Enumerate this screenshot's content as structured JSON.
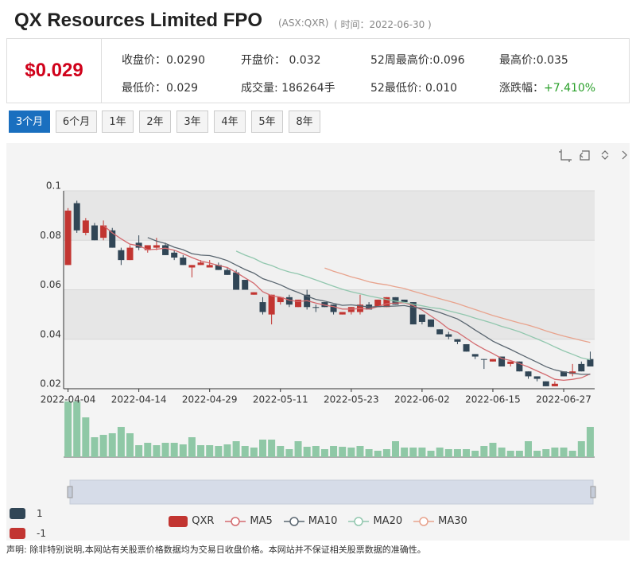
{
  "header": {
    "title": "QX Resources Limited FPO",
    "code": "(ASX:QXR)",
    "time": "( 时间：2022-06-30 )"
  },
  "quote": {
    "price": "$0.029",
    "stats": [
      {
        "label": "收盘价：",
        "value": "0.0290"
      },
      {
        "label": "开盘价： ",
        "value": "0.032"
      },
      {
        "label": "52周最高价:",
        "value": "0.096"
      },
      {
        "label": "最高价:",
        "value": "0.035"
      },
      {
        "label": "最低价：",
        "value": "0.029"
      },
      {
        "label": "成交量: ",
        "value": "186264手"
      },
      {
        "label": "52最低价: ",
        "value": "0.010"
      },
      {
        "label": "涨跌幅：",
        "value": "+7.410%",
        "color": "#2aa02a"
      }
    ]
  },
  "periods": [
    {
      "label": "3个月",
      "active": true
    },
    {
      "label": "6个月"
    },
    {
      "label": "1年"
    },
    {
      "label": "2年"
    },
    {
      "label": "3年"
    },
    {
      "label": "4年"
    },
    {
      "label": "5年"
    },
    {
      "label": "8年"
    }
  ],
  "chart_data": {
    "type": "candlestick",
    "name": "QXR",
    "categories": [
      "2022-04-04",
      null,
      null,
      null,
      null,
      null,
      null,
      null,
      "2022-04-14",
      null,
      null,
      null,
      null,
      null,
      null,
      null,
      "2022-04-29",
      null,
      null,
      null,
      null,
      null,
      null,
      null,
      "2022-05-11",
      null,
      null,
      null,
      null,
      null,
      null,
      null,
      "2022-05-23",
      null,
      null,
      null,
      null,
      null,
      null,
      null,
      "2022-06-02",
      null,
      null,
      null,
      null,
      null,
      null,
      null,
      "2022-06-15",
      null,
      null,
      null,
      null,
      null,
      null,
      null,
      "2022-06-27",
      null,
      null,
      null
    ],
    "open": [
      0.07,
      0.095,
      0.083,
      0.086,
      0.081,
      0.084,
      0.076,
      0.072,
      0.079,
      0.076,
      0.077,
      0.078,
      0.075,
      0.073,
      0.069,
      0.07,
      0.069,
      0.07,
      0.068,
      0.067,
      0.064,
      0.058,
      0.055,
      0.05,
      0.055,
      0.057,
      0.053,
      0.058,
      0.053,
      0.055,
      0.054,
      0.05,
      0.051,
      0.051,
      0.054,
      0.053,
      0.053,
      0.057,
      0.056,
      0.055,
      0.05,
      0.048,
      0.044,
      0.042,
      0.04,
      0.038,
      0.034,
      0.032,
      0.031,
      0.033,
      0.03,
      0.031,
      0.027,
      0.025,
      0.023,
      0.021,
      0.027,
      0.026,
      0.03,
      0.032
    ],
    "close": [
      0.092,
      0.084,
      0.088,
      0.08,
      0.086,
      0.077,
      0.072,
      0.077,
      0.077,
      0.078,
      0.078,
      0.074,
      0.073,
      0.07,
      0.07,
      0.071,
      0.07,
      0.068,
      0.066,
      0.06,
      0.06,
      0.059,
      0.051,
      0.058,
      0.057,
      0.054,
      0.056,
      0.053,
      0.053,
      0.053,
      0.051,
      0.051,
      0.053,
      0.054,
      0.052,
      0.056,
      0.057,
      0.054,
      0.055,
      0.046,
      0.047,
      0.045,
      0.042,
      0.041,
      0.039,
      0.035,
      0.033,
      0.032,
      0.032,
      0.029,
      0.031,
      0.027,
      0.025,
      0.024,
      0.021,
      0.022,
      0.025,
      0.027,
      0.027,
      0.029
    ],
    "low": [
      0.07,
      0.083,
      0.082,
      0.08,
      0.08,
      0.077,
      0.07,
      0.072,
      0.076,
      0.075,
      0.076,
      0.074,
      0.072,
      0.07,
      0.065,
      0.07,
      0.069,
      0.068,
      0.066,
      0.06,
      0.06,
      0.058,
      0.05,
      0.046,
      0.054,
      0.053,
      0.053,
      0.052,
      0.051,
      0.053,
      0.05,
      0.05,
      0.05,
      0.05,
      0.052,
      0.053,
      0.053,
      0.054,
      0.055,
      0.046,
      0.046,
      0.045,
      0.042,
      0.04,
      0.038,
      0.035,
      0.032,
      0.028,
      0.031,
      0.029,
      0.029,
      0.027,
      0.024,
      0.023,
      0.021,
      0.021,
      0.025,
      0.025,
      0.027,
      0.029
    ],
    "high": [
      0.093,
      0.096,
      0.089,
      0.087,
      0.088,
      0.085,
      0.077,
      0.078,
      0.082,
      0.078,
      0.081,
      0.079,
      0.076,
      0.074,
      0.07,
      0.072,
      0.072,
      0.071,
      0.069,
      0.068,
      0.064,
      0.059,
      0.057,
      0.058,
      0.057,
      0.058,
      0.056,
      0.06,
      0.054,
      0.055,
      0.054,
      0.051,
      0.053,
      0.058,
      0.055,
      0.056,
      0.057,
      0.057,
      0.056,
      0.055,
      0.05,
      0.048,
      0.044,
      0.043,
      0.04,
      0.038,
      0.034,
      0.032,
      0.032,
      0.033,
      0.031,
      0.031,
      0.027,
      0.025,
      0.023,
      0.023,
      0.027,
      0.03,
      0.031,
      0.035
    ],
    "up_color": "#c23531",
    "down_color": "#314656",
    "volume": [
      343000,
      343000,
      245000,
      122500,
      137200,
      147000,
      186200,
      147000,
      73500,
      88200,
      73500,
      88200,
      88200,
      78400,
      122500,
      73500,
      73500,
      68600,
      78400,
      98000,
      68600,
      58800,
      107800,
      107800,
      68600,
      49000,
      98000,
      63700,
      68600,
      49000,
      68600,
      63700,
      58800,
      68600,
      49000,
      39200,
      49000,
      98000,
      58800,
      58800,
      58800,
      39200,
      58800,
      49000,
      49000,
      49000,
      39200,
      68600,
      88200,
      58800,
      39200,
      39200,
      98000,
      39200,
      49000,
      58800,
      58800,
      39200,
      98000,
      186264
    ],
    "volume_color": "#8fc8a6",
    "volume_ylim": [
      0,
      353000
    ],
    "ylim": [
      0.02,
      0.1
    ],
    "yticks": [
      0.02,
      0.04,
      0.06,
      0.08,
      0.1
    ],
    "series": [
      {
        "name": "MA5",
        "color": "#d36a6e",
        "values": [
          null,
          null,
          null,
          null,
          0.086,
          0.083,
          0.0806,
          0.0784,
          0.0778,
          0.0762,
          0.0764,
          0.0768,
          0.076,
          0.0746,
          0.073,
          0.0716,
          0.0708,
          0.0698,
          0.069,
          0.067,
          0.0648,
          0.0626,
          0.0592,
          0.0576,
          0.057,
          0.0558,
          0.0552,
          0.0556,
          0.0546,
          0.0538,
          0.0532,
          0.0522,
          0.0522,
          0.0524,
          0.0522,
          0.0532,
          0.0544,
          0.0546,
          0.0548,
          0.0536,
          0.0518,
          0.0494,
          0.047,
          0.0442,
          0.0428,
          0.0404,
          0.038,
          0.036,
          0.0342,
          0.0322,
          0.0314,
          0.0302,
          0.0288,
          0.0272,
          0.0256,
          0.0238,
          0.0234,
          0.0238,
          0.0244,
          0.026
        ]
      },
      {
        "name": "MA10",
        "color": "#5a6670",
        "values": [
          null,
          null,
          null,
          null,
          null,
          null,
          null,
          null,
          null,
          0.0811,
          0.0797,
          0.0787,
          0.0772,
          0.0762,
          0.0746,
          0.074,
          0.0738,
          0.0729,
          0.0718,
          0.07,
          0.0682,
          0.0667,
          0.0645,
          0.0633,
          0.062,
          0.0603,
          0.0589,
          0.0574,
          0.0561,
          0.0554,
          0.0545,
          0.0537,
          0.0539,
          0.0535,
          0.053,
          0.0532,
          0.0533,
          0.0534,
          0.0536,
          0.0529,
          0.0525,
          0.0519,
          0.0508,
          0.0495,
          0.0482,
          0.0461,
          0.0437,
          0.0415,
          0.0392,
          0.0375,
          0.0359,
          0.0341,
          0.0324,
          0.0307,
          0.0289,
          0.0276,
          0.0268,
          0.0263,
          0.0258,
          0.0258
        ]
      },
      {
        "name": "MA20",
        "color": "#91c7ae",
        "values": [
          null,
          null,
          null,
          null,
          null,
          null,
          null,
          null,
          null,
          null,
          null,
          null,
          null,
          null,
          null,
          null,
          null,
          null,
          null,
          0.0756,
          0.074,
          0.0727,
          0.0709,
          0.0698,
          0.0683,
          0.0672,
          0.0664,
          0.0652,
          0.064,
          0.0627,
          0.0614,
          0.0602,
          0.0592,
          0.0584,
          0.0575,
          0.0568,
          0.0561,
          0.0554,
          0.0549,
          0.0542,
          0.0535,
          0.0528,
          0.0524,
          0.0515,
          0.0506,
          0.0497,
          0.0485,
          0.0475,
          0.0464,
          0.0452,
          0.0442,
          0.043,
          0.0416,
          0.0401,
          0.0386,
          0.0369,
          0.0353,
          0.0339,
          0.0325,
          0.0317
        ]
      },
      {
        "name": "MA30",
        "color": "#e8a38d",
        "values": [
          null,
          null,
          null,
          null,
          null,
          null,
          null,
          null,
          null,
          null,
          null,
          null,
          null,
          null,
          null,
          null,
          null,
          null,
          null,
          null,
          null,
          null,
          null,
          null,
          null,
          null,
          null,
          null,
          null,
          0.0688,
          0.0675,
          0.0664,
          0.0652,
          0.0643,
          0.0632,
          0.0625,
          0.062,
          0.0612,
          0.0605,
          0.0594,
          0.0584,
          0.0574,
          0.0564,
          0.0554,
          0.0544,
          0.0532,
          0.052,
          0.0508,
          0.0496,
          0.0486,
          0.0476,
          0.0466,
          0.0457,
          0.0446,
          0.0434,
          0.0423,
          0.0413,
          0.0404,
          0.0395,
          0.0387
        ]
      }
    ],
    "side_legend": [
      {
        "label": "1",
        "color": "#314656"
      },
      {
        "label": "-1",
        "color": "#c23531"
      }
    ]
  },
  "footer": {
    "disclaimer": "声明: 除非特别说明,本网站有关股票价格数据均为交易日收盘价格。本网站并不保证相关股票数据的准确性。"
  }
}
